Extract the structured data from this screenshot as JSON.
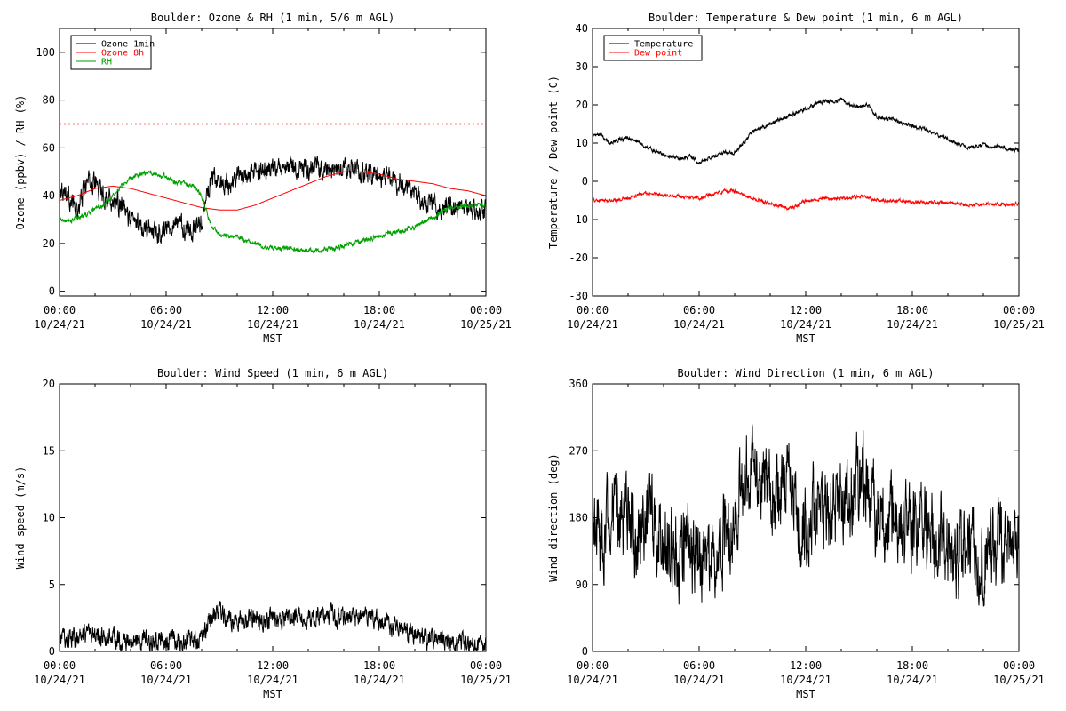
{
  "time_axis": {
    "xlabel": "MST",
    "ticks": [
      {
        "hours": 0,
        "time": "00:00",
        "date": "10/24/21"
      },
      {
        "hours": 6,
        "time": "06:00",
        "date": "10/24/21"
      },
      {
        "hours": 12,
        "time": "12:00",
        "date": "10/24/21"
      },
      {
        "hours": 18,
        "time": "18:00",
        "date": "10/24/21"
      },
      {
        "hours": 24,
        "time": "00:00",
        "date": "10/25/21"
      }
    ]
  },
  "chart_data": [
    {
      "type": "line",
      "title": "Boulder: Ozone & RH (1 min, 5/6 m AGL)",
      "ylabel": "Ozone (ppbv) / RH (%)",
      "xlabel": "MST",
      "xlim": [
        0,
        24
      ],
      "ylim": [
        -2,
        110
      ],
      "yticks": [
        0,
        20,
        40,
        60,
        80,
        100
      ],
      "grid": false,
      "legend": {
        "placement": "top-left",
        "entries": [
          "Ozone 1min",
          "Ozone 8h",
          "RH"
        ]
      },
      "reference_lines": [
        {
          "y": 70,
          "color": "#ff0000",
          "style": "dotted"
        }
      ],
      "series": [
        {
          "name": "Ozone 1min",
          "color": "#000000",
          "noise": 3.5,
          "x": [
            0,
            0.5,
            1,
            1.5,
            2,
            2.5,
            3,
            3.5,
            4,
            4.5,
            5,
            5.5,
            6,
            6.5,
            7,
            7.5,
            8,
            8.5,
            9,
            9.5,
            10,
            10.5,
            11,
            11.5,
            12,
            12.5,
            13,
            13.5,
            14,
            14.5,
            15,
            15.5,
            16,
            16.5,
            17,
            17.5,
            18,
            18.5,
            19,
            19.5,
            20,
            20.5,
            21,
            21.5,
            22,
            22.5,
            23,
            23.5,
            24
          ],
          "y": [
            45,
            40,
            33,
            45,
            46,
            40,
            38,
            35,
            30,
            28,
            27,
            25,
            26,
            30,
            27,
            25,
            30,
            46,
            46,
            44,
            48,
            48,
            50,
            50,
            50,
            51,
            52,
            51,
            51,
            51,
            51,
            50,
            51,
            51,
            50,
            49,
            48,
            47,
            46,
            44,
            40,
            37,
            37,
            35,
            36,
            34,
            35,
            34,
            35
          ]
        },
        {
          "name": "Ozone 8h",
          "color": "#ff0000",
          "noise": 0,
          "x": [
            0,
            1,
            2,
            3,
            4,
            5,
            6,
            7,
            8,
            9,
            10,
            11,
            12,
            13,
            14,
            15,
            16,
            17,
            18,
            19,
            20,
            21,
            22,
            23,
            24
          ],
          "y": [
            38,
            40,
            43,
            44,
            43,
            41,
            39,
            37,
            35,
            34,
            34,
            36,
            39,
            42,
            45,
            48,
            50,
            50,
            49,
            47,
            46,
            45,
            43,
            42,
            40
          ]
        },
        {
          "name": "RH",
          "color": "#00a000",
          "noise": 0.8,
          "x": [
            0,
            0.5,
            1,
            1.5,
            2,
            2.5,
            3,
            3.5,
            4,
            4.5,
            5,
            5.5,
            6,
            6.5,
            7,
            7.5,
            8,
            8.5,
            9,
            9.5,
            10,
            10.5,
            11,
            11.5,
            12,
            12.5,
            13,
            13.5,
            14,
            14.5,
            15,
            15.5,
            16,
            16.5,
            17,
            17.5,
            18,
            18.5,
            19,
            19.5,
            20,
            20.5,
            21,
            21.5,
            22,
            22.5,
            23,
            23.5,
            24
          ],
          "y": [
            30,
            29,
            31,
            32,
            34,
            36,
            40,
            44,
            47,
            49,
            50,
            49,
            48,
            46,
            45,
            44,
            40,
            28,
            24,
            23,
            23,
            21,
            20,
            19,
            18,
            18,
            18,
            17,
            17,
            17,
            17.5,
            18,
            19,
            20,
            21,
            22,
            23,
            24,
            25,
            26,
            27,
            29,
            31,
            33,
            35,
            35,
            36,
            36,
            36
          ]
        }
      ]
    },
    {
      "type": "line",
      "title": "Boulder: Temperature & Dew point (1 min, 6 m AGL)",
      "ylabel": "Temperature / Dew point (C)",
      "xlabel": "MST",
      "xlim": [
        0,
        24
      ],
      "ylim": [
        -30,
        40
      ],
      "yticks": [
        -30,
        -20,
        -10,
        0,
        10,
        20,
        30,
        40
      ],
      "grid": false,
      "legend": {
        "placement": "top-left",
        "entries": [
          "Temperature",
          "Dew point"
        ]
      },
      "series": [
        {
          "name": "Temperature",
          "color": "#000000",
          "noise": 0.4,
          "x": [
            0,
            0.5,
            1,
            1.5,
            2,
            2.5,
            3,
            3.5,
            4,
            4.5,
            5,
            5.5,
            6,
            6.5,
            7,
            7.5,
            8,
            8.5,
            9,
            9.5,
            10,
            10.5,
            11,
            11.5,
            12,
            12.5,
            13,
            13.5,
            14,
            14.5,
            15,
            15.5,
            16,
            16.5,
            17,
            17.5,
            18,
            18.5,
            19,
            19.5,
            20,
            20.5,
            21,
            21.5,
            22,
            22.5,
            23,
            23.5,
            24
          ],
          "y": [
            12,
            12,
            10,
            11,
            11.5,
            10.5,
            9,
            8,
            7,
            6.5,
            6,
            6.5,
            5,
            6,
            7,
            7.5,
            7.5,
            10,
            13,
            14,
            15,
            16,
            17,
            18,
            19,
            20,
            21,
            21,
            21.5,
            20,
            19.5,
            20,
            17,
            16.5,
            16,
            15,
            14.5,
            14,
            13,
            12,
            11,
            10,
            9,
            9,
            9.5,
            9,
            9,
            8.5,
            8
          ]
        },
        {
          "name": "Dew point",
          "color": "#ff0000",
          "noise": 0.35,
          "x": [
            0,
            1,
            2,
            3,
            4,
            5,
            6,
            7,
            7.5,
            8,
            8.5,
            9,
            9.5,
            10,
            10.5,
            11,
            11.5,
            12,
            12.5,
            13,
            14,
            15,
            15.5,
            16,
            17,
            18,
            19,
            20,
            21,
            22,
            23,
            24
          ],
          "y": [
            -5,
            -5,
            -4.5,
            -3,
            -3.5,
            -4,
            -4.5,
            -3,
            -2.5,
            -2.5,
            -3.5,
            -4.5,
            -5,
            -6,
            -6.5,
            -7,
            -6.5,
            -5,
            -5,
            -4.5,
            -4.5,
            -4,
            -4,
            -5,
            -5,
            -5.5,
            -5.5,
            -5.5,
            -6,
            -6,
            -6,
            -6
          ]
        }
      ]
    },
    {
      "type": "line",
      "title": "Boulder: Wind Speed (1 min, 6 m AGL)",
      "ylabel": "Wind speed (m/s)",
      "xlabel": "MST",
      "xlim": [
        0,
        24
      ],
      "ylim": [
        0,
        20
      ],
      "yticks": [
        0,
        5,
        10,
        15,
        20
      ],
      "grid": false,
      "series": [
        {
          "color": "#000000",
          "noise": 0.6,
          "floor": 0,
          "x": [
            0,
            0.5,
            1,
            1.5,
            2,
            2.5,
            3,
            3.5,
            4,
            4.5,
            5,
            5.5,
            6,
            6.5,
            7,
            7.5,
            8,
            8.5,
            9,
            9.5,
            10,
            10.5,
            11,
            11.5,
            12,
            12.5,
            13,
            13.5,
            14,
            14.5,
            15,
            15.5,
            16,
            16.5,
            17,
            17.5,
            18,
            18.5,
            19,
            19.5,
            20,
            20.5,
            21,
            21.5,
            22,
            22.5,
            23,
            23.5,
            24
          ],
          "y": [
            1,
            1,
            0.8,
            1,
            1.2,
            1,
            1,
            0.7,
            0.6,
            0.8,
            0.7,
            0.7,
            0.8,
            0.8,
            0.8,
            0.8,
            1,
            2.5,
            3,
            2.5,
            2.5,
            2.5,
            2.5,
            2.5,
            2.5,
            2.5,
            2.5,
            2.5,
            2.5,
            2.5,
            3,
            2.5,
            2.5,
            2.5,
            2.5,
            2.5,
            2.2,
            2,
            1.8,
            1.5,
            1.2,
            1,
            1,
            0.8,
            0.6,
            0.5,
            0.5,
            0.4,
            0.4
          ]
        }
      ]
    },
    {
      "type": "line",
      "title": "Boulder: Wind Direction (1 min, 6 m AGL)",
      "ylabel": "Wind direction (deg)",
      "xlabel": "MST",
      "xlim": [
        0,
        24
      ],
      "ylim": [
        0,
        360
      ],
      "yticks": [
        0,
        90,
        180,
        270,
        360
      ],
      "grid": false,
      "series": [
        {
          "color": "#000000",
          "noise": 45,
          "floor": 0,
          "ceil": 360,
          "x": [
            0,
            0.5,
            1,
            1.5,
            2,
            2.5,
            3,
            3.5,
            4,
            4.5,
            5,
            5.5,
            6,
            6.5,
            7,
            7.5,
            8,
            8.5,
            9,
            9.5,
            10,
            10.5,
            11,
            11.5,
            12,
            12.5,
            13,
            13.5,
            14,
            14.5,
            15,
            15.5,
            16,
            16.5,
            17,
            17.5,
            18,
            18.5,
            19,
            19.5,
            20,
            20.5,
            21,
            21.5,
            22,
            22.5,
            23,
            23.5,
            24
          ],
          "y": [
            180,
            140,
            200,
            160,
            190,
            150,
            170,
            180,
            150,
            130,
            140,
            150,
            130,
            120,
            140,
            160,
            180,
            230,
            240,
            220,
            230,
            210,
            240,
            180,
            170,
            200,
            190,
            200,
            190,
            210,
            230,
            240,
            180,
            175,
            175,
            170,
            165,
            170,
            160,
            150,
            140,
            130,
            140,
            150,
            130,
            140,
            130,
            150,
            160
          ]
        }
      ]
    }
  ]
}
